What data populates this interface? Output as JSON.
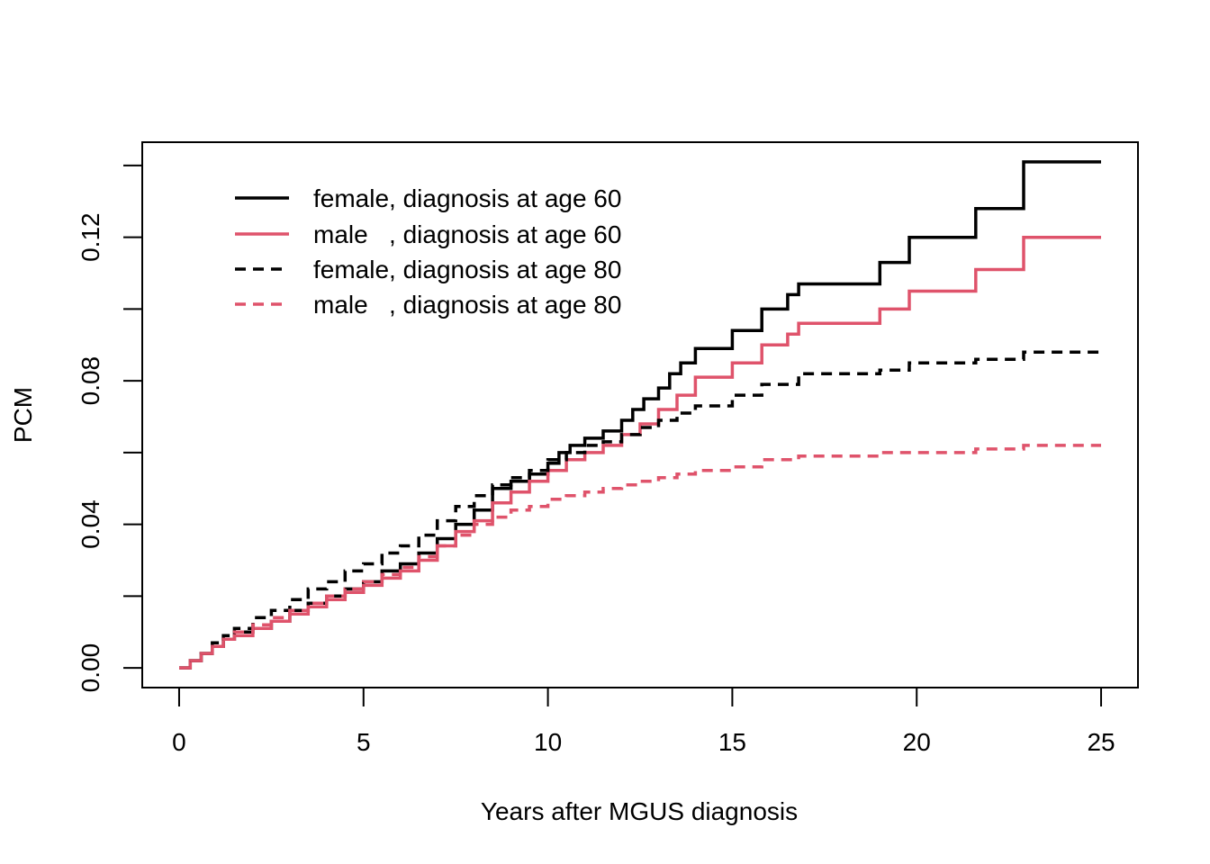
{
  "chart_data": {
    "type": "line",
    "title": "",
    "xlabel": "Years after MGUS diagnosis",
    "ylabel": "PCM",
    "xlim": [
      -1,
      26
    ],
    "ylim": [
      -0.0055,
      0.1465
    ],
    "x_ticks": [
      0,
      5,
      10,
      15,
      20,
      25
    ],
    "x_tick_labels": [
      "0",
      "5",
      "10",
      "15",
      "20",
      "25"
    ],
    "y_ticks": [
      0,
      0.02,
      0.04,
      0.06,
      0.08,
      0.1,
      0.12,
      0.14
    ],
    "y_tick_labels": [
      "0.00",
      "",
      "0.04",
      "",
      "0.08",
      "",
      "0.12",
      ""
    ],
    "grid": false,
    "legend_position": "top-left",
    "series": [
      {
        "name": "female, diagnosis at age 60",
        "color": "#000000",
        "dash": "solid",
        "step": true,
        "x": [
          0,
          0.3,
          0.6,
          0.9,
          1.2,
          1.5,
          2.0,
          2.5,
          3.0,
          3.5,
          4.0,
          4.5,
          5.0,
          5.5,
          6.0,
          6.5,
          7.0,
          7.5,
          8.0,
          8.5,
          9.0,
          9.5,
          10.0,
          10.3,
          10.6,
          11.0,
          11.5,
          12.0,
          12.3,
          12.6,
          13.0,
          13.3,
          13.6,
          14.0,
          15.0,
          15.8,
          16.5,
          16.8,
          19.0,
          19.8,
          21.6,
          22.9,
          25.0
        ],
        "values": [
          0,
          0.002,
          0.004,
          0.006,
          0.008,
          0.01,
          0.011,
          0.013,
          0.016,
          0.018,
          0.02,
          0.022,
          0.024,
          0.027,
          0.029,
          0.032,
          0.036,
          0.04,
          0.044,
          0.05,
          0.052,
          0.054,
          0.057,
          0.06,
          0.062,
          0.064,
          0.066,
          0.069,
          0.072,
          0.075,
          0.078,
          0.082,
          0.085,
          0.089,
          0.094,
          0.1,
          0.104,
          0.107,
          0.113,
          0.12,
          0.128,
          0.141,
          0.141
        ]
      },
      {
        "name": "male   , diagnosis at age 60",
        "color": "#DF536B",
        "dash": "solid",
        "step": true,
        "x": [
          0,
          0.3,
          0.6,
          0.9,
          1.2,
          1.5,
          2.0,
          2.5,
          3.0,
          3.5,
          4.0,
          4.5,
          5.0,
          5.5,
          6.0,
          6.5,
          7.0,
          7.5,
          8.0,
          8.5,
          9.0,
          9.5,
          10.0,
          10.5,
          11.0,
          11.5,
          12.0,
          12.5,
          13.0,
          13.5,
          14.0,
          15.0,
          15.8,
          16.5,
          16.8,
          19.0,
          19.8,
          21.6,
          22.9,
          25.0
        ],
        "values": [
          0,
          0.002,
          0.004,
          0.006,
          0.008,
          0.009,
          0.011,
          0.013,
          0.015,
          0.017,
          0.019,
          0.021,
          0.023,
          0.025,
          0.027,
          0.03,
          0.034,
          0.038,
          0.041,
          0.046,
          0.049,
          0.052,
          0.055,
          0.058,
          0.06,
          0.062,
          0.065,
          0.068,
          0.072,
          0.076,
          0.081,
          0.085,
          0.09,
          0.093,
          0.096,
          0.1,
          0.105,
          0.111,
          0.12,
          0.12
        ]
      },
      {
        "name": "female, diagnosis at age 80",
        "color": "#000000",
        "dash": "dashed",
        "step": true,
        "x": [
          0,
          0.3,
          0.6,
          0.9,
          1.2,
          1.5,
          2.0,
          2.5,
          3.0,
          3.5,
          4.0,
          4.5,
          5.0,
          5.5,
          6.0,
          6.5,
          7.0,
          7.5,
          8.0,
          8.5,
          9.0,
          9.5,
          10.0,
          10.5,
          11.0,
          11.5,
          12.0,
          12.5,
          13.0,
          13.5,
          14.0,
          15.0,
          15.8,
          16.8,
          19.0,
          19.8,
          21.6,
          22.9,
          25.0
        ],
        "values": [
          0,
          0.002,
          0.004,
          0.007,
          0.009,
          0.011,
          0.014,
          0.016,
          0.019,
          0.022,
          0.024,
          0.027,
          0.029,
          0.032,
          0.034,
          0.037,
          0.041,
          0.045,
          0.048,
          0.051,
          0.053,
          0.055,
          0.058,
          0.06,
          0.062,
          0.063,
          0.065,
          0.067,
          0.069,
          0.071,
          0.073,
          0.076,
          0.079,
          0.082,
          0.083,
          0.085,
          0.086,
          0.088,
          0.089
        ]
      },
      {
        "name": "male   , diagnosis at age 80",
        "color": "#DF536B",
        "dash": "dashed",
        "step": true,
        "x": [
          0,
          0.3,
          0.6,
          0.9,
          1.2,
          1.5,
          2.0,
          2.5,
          3.0,
          3.5,
          4.0,
          4.5,
          5.0,
          5.5,
          6.0,
          6.5,
          7.0,
          7.5,
          8.0,
          8.5,
          9.0,
          9.5,
          10.0,
          10.5,
          11.0,
          11.5,
          12.0,
          12.5,
          13.0,
          13.5,
          14.0,
          15.0,
          15.8,
          16.8,
          19.0,
          21.6,
          22.9,
          25.0
        ],
        "values": [
          0,
          0.002,
          0.004,
          0.006,
          0.008,
          0.01,
          0.012,
          0.014,
          0.016,
          0.018,
          0.02,
          0.022,
          0.024,
          0.026,
          0.028,
          0.031,
          0.034,
          0.037,
          0.04,
          0.042,
          0.044,
          0.045,
          0.047,
          0.048,
          0.049,
          0.05,
          0.051,
          0.052,
          0.053,
          0.054,
          0.055,
          0.056,
          0.058,
          0.059,
          0.06,
          0.061,
          0.062,
          0.062
        ]
      }
    ]
  }
}
